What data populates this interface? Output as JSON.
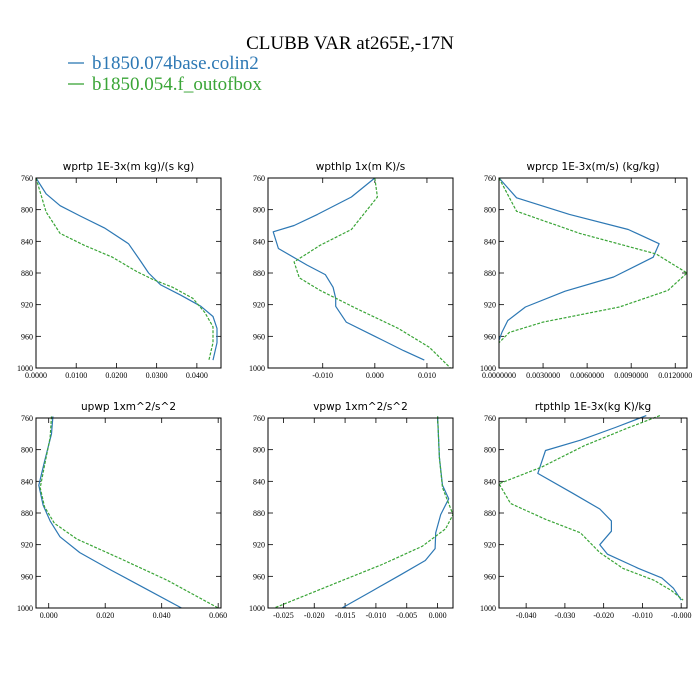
{
  "title": "CLUBB VAR at265E,-17N",
  "legend": [
    {
      "label": "b1850.074base.colin2",
      "color": "#2d78b4",
      "dash": "none"
    },
    {
      "label": "b1850.054.f_outofbox",
      "color": "#3aa537",
      "dash": "3,1.5"
    }
  ],
  "chart_data": [
    {
      "type": "line",
      "title": "wprtp  1E-3x(m kg)/(s kg)",
      "xlim": [
        0.0,
        0.046
      ],
      "xticks": [
        0.0,
        0.01,
        0.02,
        0.03,
        0.04
      ],
      "xticklabels": [
        "0.0000",
        "0.0100",
        "0.0200",
        "0.0300",
        "0.0400"
      ],
      "ylim": [
        760,
        1000
      ],
      "yticks": [
        760,
        800,
        840,
        880,
        920,
        960,
        1000
      ],
      "yticklabels": [
        "760",
        "800",
        "840",
        "880",
        "920",
        "960",
        "1000"
      ],
      "series": [
        {
          "name": "b1850.074base.colin2",
          "x": [
            0.0,
            0.0025,
            0.006,
            0.011,
            0.017,
            0.023,
            0.026,
            0.028,
            0.031,
            0.036,
            0.041,
            0.044,
            0.045,
            0.045,
            0.044
          ],
          "y": [
            760,
            780,
            795,
            808,
            823,
            843,
            865,
            880,
            895,
            908,
            922,
            935,
            950,
            968,
            990
          ]
        },
        {
          "name": "b1850.054.f_outofbox",
          "x": [
            0.0,
            0.0025,
            0.006,
            0.012,
            0.019,
            0.025,
            0.029,
            0.034,
            0.039,
            0.042,
            0.044,
            0.044,
            0.043
          ],
          "y": [
            760,
            803,
            830,
            845,
            860,
            878,
            888,
            898,
            912,
            930,
            948,
            968,
            990
          ]
        }
      ]
    },
    {
      "type": "line",
      "title": "wpthlp  1x(m K)/s",
      "xlim": [
        -0.0205,
        0.015
      ],
      "xticks": [
        -0.01,
        0.0,
        0.01
      ],
      "xticklabels": [
        "-0.010",
        "0.000",
        "0.010"
      ],
      "ylim": [
        760,
        1000
      ],
      "yticks": [
        760,
        800,
        840,
        880,
        920,
        960,
        1000
      ],
      "yticklabels": [
        "760",
        "800",
        "840",
        "880",
        "920",
        "960",
        "1000"
      ],
      "series": [
        {
          "name": "b1850.074base.colin2",
          "x": [
            0.0,
            -0.0045,
            -0.011,
            -0.0155,
            -0.0195,
            -0.0185,
            -0.013,
            -0.0095,
            -0.008,
            -0.0075,
            -0.0075,
            -0.0055,
            0.0,
            0.0055,
            0.0095
          ],
          "y": [
            760,
            784,
            806,
            820,
            828,
            849,
            870,
            882,
            898,
            912,
            922,
            942,
            960,
            978,
            990
          ]
        },
        {
          "name": "b1850.054.f_outofbox",
          "x": [
            0.0,
            0.0005,
            -0.0045,
            -0.0105,
            -0.0155,
            -0.0145,
            -0.0105,
            -0.0035,
            0.0045,
            0.0105,
            0.0145
          ],
          "y": [
            760,
            784,
            825,
            845,
            866,
            886,
            902,
            925,
            950,
            974,
            1000
          ]
        }
      ]
    },
    {
      "type": "line",
      "title": "wprcp  1E-3x(m/s) (kg/kg)",
      "xlim": [
        0.0,
        0.0128
      ],
      "xticks": [
        0.0,
        0.003,
        0.006,
        0.009,
        0.012
      ],
      "xticklabels": [
        "0.0000000",
        "0.0030000",
        "0.0060000",
        "0.0090000",
        "0.0120000"
      ],
      "ylim": [
        760,
        1000
      ],
      "yticks": [
        760,
        800,
        840,
        880,
        920,
        960,
        1000
      ],
      "yticklabels": [
        "760",
        "800",
        "840",
        "880",
        "920",
        "960",
        "1000"
      ],
      "series": [
        {
          "name": "b1850.074base.colin2",
          "x": [
            0.0,
            0.0012,
            0.0048,
            0.0088,
            0.0109,
            0.0105,
            0.0078,
            0.0045,
            0.0018,
            0.0006,
            0.0002,
            0.0
          ],
          "y": [
            760,
            785,
            806,
            825,
            843,
            860,
            885,
            903,
            923,
            940,
            955,
            965
          ]
        },
        {
          "name": "b1850.054.f_outofbox",
          "x": [
            0.0,
            0.0012,
            0.0055,
            0.0107,
            0.0128,
            0.0115,
            0.0082,
            0.003,
            0.0007,
            0.0
          ],
          "y": [
            760,
            802,
            830,
            856,
            880,
            902,
            923,
            942,
            955,
            968
          ]
        }
      ]
    },
    {
      "type": "line",
      "title": "upwp  1xm^2/s^2",
      "xlim": [
        -0.0045,
        0.061
      ],
      "xticks": [
        0.0,
        0.02,
        0.04,
        0.06
      ],
      "xticklabels": [
        "0.000",
        "0.020",
        "0.040",
        "0.060"
      ],
      "ylim": [
        760,
        1000
      ],
      "yticks": [
        760,
        800,
        840,
        880,
        920,
        960,
        1000
      ],
      "yticklabels": [
        "760",
        "800",
        "840",
        "880",
        "920",
        "960",
        "1000"
      ],
      "series": [
        {
          "name": "b1850.074base.colin2",
          "x": [
            0.0015,
            0.001,
            -0.0015,
            -0.0035,
            -0.002,
            0.0005,
            0.004,
            0.011,
            0.022,
            0.034,
            0.047
          ],
          "y": [
            758,
            780,
            815,
            845,
            870,
            890,
            910,
            930,
            952,
            975,
            1000
          ]
        },
        {
          "name": "b1850.054.f_outofbox",
          "x": [
            0.001,
            0.0005,
            -0.0015,
            -0.003,
            -0.0015,
            0.002,
            0.01,
            0.025,
            0.042,
            0.06
          ],
          "y": [
            758,
            785,
            820,
            848,
            872,
            893,
            913,
            937,
            965,
            1000
          ]
        }
      ]
    },
    {
      "type": "line",
      "title": "vpwp  1xm^2/s^2",
      "xlim": [
        -0.0275,
        0.0025
      ],
      "xticks": [
        -0.025,
        -0.02,
        -0.015,
        -0.01,
        -0.005,
        0.0
      ],
      "xticklabels": [
        "-0.025",
        "-0.020",
        "-0.015",
        "-0.010",
        "-0.005",
        "0.000"
      ],
      "ylim": [
        760,
        1000
      ],
      "yticks": [
        760,
        800,
        840,
        880,
        920,
        960,
        1000
      ],
      "yticklabels": [
        "760",
        "800",
        "840",
        "880",
        "920",
        "960",
        "1000"
      ],
      "series": [
        {
          "name": "b1850.074base.colin2",
          "x": [
            0.0,
            0.0003,
            0.0008,
            0.0018,
            0.0005,
            -0.0003,
            -0.0004,
            -0.002,
            -0.006,
            -0.0105,
            -0.0155
          ],
          "y": [
            758,
            810,
            845,
            862,
            882,
            905,
            925,
            940,
            958,
            978,
            1000
          ]
        },
        {
          "name": "b1850.054.f_outofbox",
          "x": [
            0.0,
            0.0003,
            0.0008,
            0.0018,
            0.0025,
            0.0013,
            -0.0025,
            -0.009,
            -0.017,
            -0.0265
          ],
          "y": [
            758,
            810,
            848,
            868,
            882,
            900,
            922,
            945,
            970,
            1000
          ]
        }
      ]
    },
    {
      "type": "line",
      "title": "rtpthlp  1E-3x(kg K)/kg",
      "xlim": [
        -0.047,
        0.0015
      ],
      "xticks": [
        -0.04,
        -0.03,
        -0.02,
        -0.01,
        0.0
      ],
      "xticklabels": [
        "-0.040",
        "-0.030",
        "-0.020",
        "-0.010",
        "-0.000"
      ],
      "ylim": [
        760,
        1000
      ],
      "yticks": [
        760,
        800,
        840,
        880,
        920,
        960,
        1000
      ],
      "yticklabels": [
        "760",
        "800",
        "840",
        "880",
        "920",
        "960",
        "1000"
      ],
      "series": [
        {
          "name": "b1850.074base.colin2",
          "x": [
            -0.009,
            -0.017,
            -0.026,
            -0.035,
            -0.037,
            -0.028,
            -0.021,
            -0.018,
            -0.018,
            -0.021,
            -0.019,
            -0.011,
            -0.005,
            -0.002,
            0.0
          ],
          "y": [
            757,
            772,
            788,
            801,
            830,
            855,
            875,
            890,
            903,
            920,
            932,
            950,
            962,
            975,
            990
          ]
        },
        {
          "name": "b1850.054.f_outofbox",
          "x": [
            -0.0055,
            -0.014,
            -0.025,
            -0.036,
            -0.047,
            -0.044,
            -0.035,
            -0.026,
            -0.021,
            -0.015,
            -0.007,
            -0.0025,
            0.0005
          ],
          "y": [
            757,
            773,
            795,
            822,
            843,
            868,
            888,
            905,
            930,
            950,
            965,
            978,
            990
          ]
        }
      ]
    }
  ]
}
